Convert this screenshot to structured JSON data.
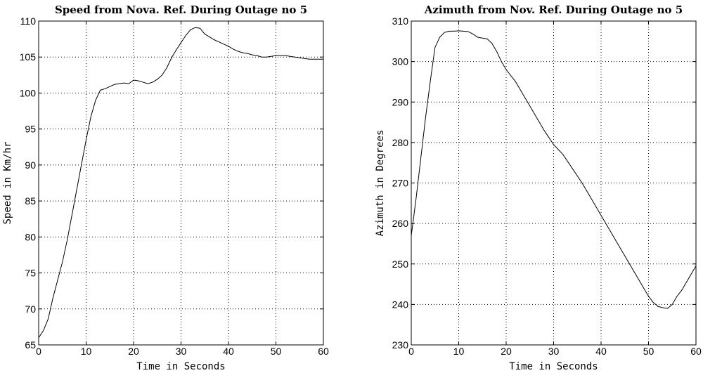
{
  "chart_data": [
    {
      "type": "line",
      "title": "Speed from Nova. Ref. During Outage no 5",
      "xlabel": "Time in Seconds",
      "ylabel": "Speed in Km/hr",
      "xlim": [
        0,
        60
      ],
      "ylim": [
        65,
        110
      ],
      "xticks": [
        0,
        10,
        20,
        30,
        40,
        50,
        60
      ],
      "yticks": [
        65,
        70,
        75,
        80,
        85,
        90,
        95,
        100,
        105,
        110
      ],
      "grid": true,
      "series": [
        {
          "x": [
            0,
            1,
            2,
            3,
            4,
            5,
            6,
            7,
            8,
            9,
            10,
            11,
            12,
            13,
            14,
            15,
            16,
            17,
            18,
            19,
            20,
            21,
            22,
            23,
            24,
            25,
            26,
            27,
            28,
            29,
            30,
            31,
            32,
            33,
            34,
            35,
            36,
            37,
            38,
            39,
            40,
            41,
            42,
            43,
            44,
            45,
            46,
            47,
            48,
            49,
            50,
            51,
            52,
            53,
            54,
            55,
            56,
            57,
            58,
            59,
            60
          ],
          "y": [
            66.0,
            67.0,
            68.6,
            71.5,
            74.0,
            76.5,
            79.5,
            83.0,
            86.5,
            90.0,
            93.5,
            96.7,
            99.0,
            100.4,
            100.6,
            100.9,
            101.2,
            101.3,
            101.4,
            101.3,
            101.8,
            101.7,
            101.5,
            101.3,
            101.5,
            101.9,
            102.5,
            103.5,
            104.9,
            106.0,
            107.0,
            108.0,
            108.8,
            109.1,
            109.0,
            108.2,
            107.8,
            107.4,
            107.1,
            106.8,
            106.5,
            106.1,
            105.8,
            105.6,
            105.5,
            105.3,
            105.2,
            105.0,
            105.0,
            105.1,
            105.2,
            105.2,
            105.2,
            105.1,
            105.0,
            104.9,
            104.8,
            104.7,
            104.7,
            104.7,
            104.7
          ]
        }
      ]
    },
    {
      "type": "line",
      "title": "Azimuth from Nov. Ref. During Outage no 5",
      "xlabel": "Time in Seconds",
      "ylabel": "Azimuth in Degrees",
      "xlim": [
        0,
        60
      ],
      "ylim": [
        230,
        310
      ],
      "xticks": [
        0,
        10,
        20,
        30,
        40,
        50,
        60
      ],
      "yticks": [
        230,
        240,
        250,
        260,
        270,
        280,
        290,
        300,
        310
      ],
      "grid": true,
      "series": [
        {
          "x": [
            0,
            1,
            2,
            3,
            4,
            5,
            6,
            7,
            8,
            9,
            10,
            11,
            12,
            13,
            14,
            15,
            16,
            17,
            18,
            19,
            20,
            22,
            24,
            26,
            28,
            30,
            32,
            34,
            36,
            38,
            40,
            42,
            44,
            46,
            48,
            50,
            51,
            52,
            53,
            54,
            55,
            56,
            57,
            58,
            59,
            60
          ],
          "y": [
            257,
            266,
            276,
            286,
            295,
            303.5,
            306,
            307.2,
            307.5,
            307.5,
            307.6,
            307.5,
            307.4,
            306.8,
            306.0,
            305.8,
            305.6,
            304.5,
            302.5,
            300.0,
            298.0,
            295.0,
            291.0,
            287.0,
            283.0,
            279.5,
            277.0,
            273.5,
            270.0,
            266.0,
            262.0,
            258.0,
            254.0,
            250.0,
            246.0,
            242.0,
            240.5,
            239.5,
            239.2,
            239.0,
            240.0,
            242.0,
            243.5,
            245.5,
            247.5,
            249.5
          ]
        }
      ]
    }
  ]
}
